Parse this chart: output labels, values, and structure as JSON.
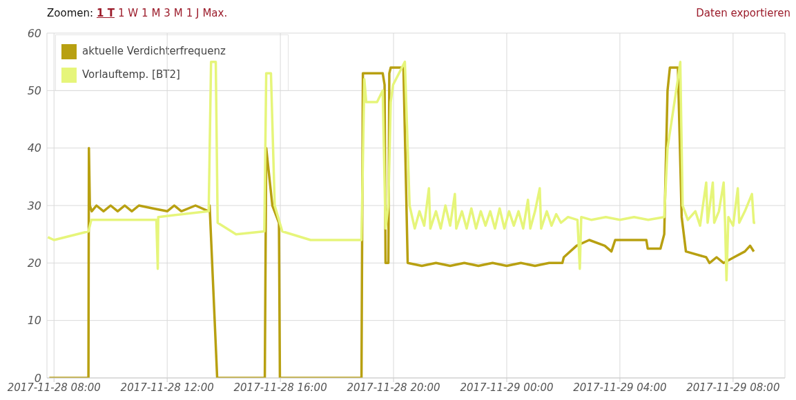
{
  "chart_data": {
    "type": "line",
    "annotations": [
      "Zoomen:",
      "1 T",
      "1 W",
      "1 M",
      "3 M",
      "1 J",
      "Max.",
      "Daten exportieren"
    ],
    "xlim": [
      "2017-11-28T07:45",
      "2017-11-29T09:50"
    ],
    "xticks": [
      {
        "value": "2017-11-28T08:00",
        "label": "2017-11-28 08:00"
      },
      {
        "value": "2017-11-28T12:00",
        "label": "2017-11-28 12:00"
      },
      {
        "value": "2017-11-28T16:00",
        "label": "2017-11-28 16:00"
      },
      {
        "value": "2017-11-28T20:00",
        "label": "2017-11-28 20:00"
      },
      {
        "value": "2017-11-29T00:00",
        "label": "2017-11-29 00:00"
      },
      {
        "value": "2017-11-29T04:00",
        "label": "2017-11-29 04:00"
      },
      {
        "value": "2017-11-29T08:00",
        "label": "2017-11-29 08:00"
      }
    ],
    "ylim": [
      0,
      60
    ],
    "yticks": [
      0,
      10,
      20,
      30,
      40,
      50,
      60
    ],
    "grid": true,
    "legend": "top left",
    "marker": "none",
    "line_style": "solid",
    "series": [
      {
        "name": "aktuelle Verdichterfrequenz",
        "color": "#b8a011",
        "x": [
          "2017-11-28T07:50",
          "2017-11-28T09:13",
          "2017-11-28T09:14",
          "2017-11-28T09:16",
          "2017-11-28T09:20",
          "2017-11-28T09:30",
          "2017-11-28T09:45",
          "2017-11-28T10:00",
          "2017-11-28T10:15",
          "2017-11-28T10:30",
          "2017-11-28T10:45",
          "2017-11-28T11:00",
          "2017-11-28T11:30",
          "2017-11-28T12:00",
          "2017-11-28T12:15",
          "2017-11-28T12:30",
          "2017-11-28T13:00",
          "2017-11-28T13:28",
          "2017-11-28T13:30",
          "2017-11-28T13:46",
          "2017-11-28T15:27",
          "2017-11-28T15:30",
          "2017-11-28T15:43",
          "2017-11-28T15:57",
          "2017-11-28T15:59",
          "2017-11-28T18:52",
          "2017-11-28T18:55",
          "2017-11-28T19:37",
          "2017-11-28T19:41",
          "2017-11-28T19:43",
          "2017-11-28T19:49",
          "2017-11-28T19:51",
          "2017-11-28T19:54",
          "2017-11-28T20:21",
          "2017-11-28T20:30",
          "2017-11-28T21:00",
          "2017-11-28T21:30",
          "2017-11-28T22:00",
          "2017-11-28T22:30",
          "2017-11-28T23:00",
          "2017-11-28T23:30",
          "2017-11-29T00:00",
          "2017-11-29T00:30",
          "2017-11-29T01:00",
          "2017-11-29T01:30",
          "2017-11-29T01:58",
          "2017-11-29T02:01",
          "2017-11-29T02:28",
          "2017-11-29T02:55",
          "2017-11-29T03:28",
          "2017-11-29T03:42",
          "2017-11-29T03:50",
          "2017-11-29T04:56",
          "2017-11-29T04:59",
          "2017-11-29T05:26",
          "2017-11-29T05:34",
          "2017-11-29T05:41",
          "2017-11-29T05:46",
          "2017-11-29T06:03",
          "2017-11-29T06:11",
          "2017-11-29T06:20",
          "2017-11-29T07:03",
          "2017-11-29T07:10",
          "2017-11-29T07:25",
          "2017-11-29T07:40",
          "2017-11-29T08:02",
          "2017-11-29T08:25",
          "2017-11-29T08:36",
          "2017-11-29T08:44"
        ],
        "values": [
          0,
          0,
          40,
          30,
          29,
          30,
          29,
          30,
          29,
          30,
          29,
          30,
          29.5,
          29,
          30,
          29,
          30,
          29,
          30,
          0,
          0,
          40,
          30,
          27,
          0,
          0,
          53,
          53,
          51,
          20,
          20,
          53,
          54,
          54,
          20,
          19.5,
          20,
          19.5,
          20,
          19.5,
          20,
          19.5,
          20,
          19.5,
          20,
          20,
          21,
          23,
          24,
          23,
          22,
          24,
          24,
          22.5,
          22.5,
          25,
          50,
          54,
          54,
          28,
          22,
          21,
          20,
          21,
          20,
          21,
          22,
          23,
          22
        ]
      },
      {
        "name": "Vorlauftemp. [BT2]",
        "color": "#e6f57a",
        "x": [
          "2017-11-28T07:47",
          "2017-11-28T08:00",
          "2017-11-28T09:13",
          "2017-11-28T09:19",
          "2017-11-28T11:37",
          "2017-11-28T11:40",
          "2017-11-28T11:41",
          "2017-11-28T13:28",
          "2017-11-28T13:33",
          "2017-11-28T13:43",
          "2017-11-28T13:47",
          "2017-11-28T14:26",
          "2017-11-28T15:26",
          "2017-11-28T15:30",
          "2017-11-28T15:40",
          "2017-11-28T15:48",
          "2017-11-28T16:04",
          "2017-11-28T17:04",
          "2017-11-28T18:52",
          "2017-11-28T18:58",
          "2017-11-28T19:02",
          "2017-11-28T19:25",
          "2017-11-28T19:37",
          "2017-11-28T19:43",
          "2017-11-28T19:49",
          "2017-11-28T19:54",
          "2017-11-28T19:59",
          "2017-11-28T20:24",
          "2017-11-28T20:34",
          "2017-11-28T20:45",
          "2017-11-28T20:55",
          "2017-11-28T21:05",
          "2017-11-28T21:15",
          "2017-11-28T21:18",
          "2017-11-28T21:30",
          "2017-11-28T21:40",
          "2017-11-28T21:50",
          "2017-11-28T22:00",
          "2017-11-28T22:10",
          "2017-11-28T22:13",
          "2017-11-28T22:25",
          "2017-11-28T22:35",
          "2017-11-28T22:45",
          "2017-11-28T22:55",
          "2017-11-28T23:05",
          "2017-11-28T23:15",
          "2017-11-28T23:25",
          "2017-11-28T23:35",
          "2017-11-28T23:45",
          "2017-11-28T23:55",
          "2017-11-29T00:05",
          "2017-11-29T00:15",
          "2017-11-29T00:25",
          "2017-11-29T00:35",
          "2017-11-29T00:45",
          "2017-11-29T00:50",
          "2017-11-29T01:00",
          "2017-11-29T01:10",
          "2017-11-29T01:13",
          "2017-11-29T01:25",
          "2017-11-29T01:35",
          "2017-11-29T01:45",
          "2017-11-29T01:55",
          "2017-11-29T02:10",
          "2017-11-29T02:30",
          "2017-11-29T02:35",
          "2017-11-29T02:38",
          "2017-11-29T03:00",
          "2017-11-29T03:30",
          "2017-11-29T04:00",
          "2017-11-29T04:30",
          "2017-11-29T05:00",
          "2017-11-29T05:34",
          "2017-11-29T05:41",
          "2017-11-29T06:03",
          "2017-11-29T06:08",
          "2017-11-29T06:13",
          "2017-11-29T06:24",
          "2017-11-29T06:40",
          "2017-11-29T06:50",
          "2017-11-29T07:03",
          "2017-11-29T07:06",
          "2017-11-29T07:17",
          "2017-11-29T07:20",
          "2017-11-29T07:30",
          "2017-11-29T07:40",
          "2017-11-29T07:43",
          "2017-11-29T07:46",
          "2017-11-29T07:50",
          "2017-11-29T08:00",
          "2017-11-29T08:10",
          "2017-11-29T08:13",
          "2017-11-29T08:25",
          "2017-11-29T08:40",
          "2017-11-29T08:44",
          "2017-11-29T08:47"
        ],
        "values": [
          24.5,
          24,
          25.5,
          27.5,
          27.5,
          19,
          28,
          29,
          55,
          55,
          27,
          25,
          25.5,
          53,
          53,
          30,
          25.5,
          24,
          24,
          52,
          48,
          48,
          50,
          26,
          30,
          48,
          51,
          55,
          30,
          26,
          29,
          26.5,
          33,
          26,
          29,
          26,
          30,
          26.5,
          32,
          26,
          29,
          26,
          29.5,
          26,
          29,
          26.5,
          29,
          26,
          29.5,
          26,
          29,
          26.5,
          29,
          26,
          31,
          26,
          29,
          33,
          26,
          29,
          26.5,
          28.5,
          27,
          28,
          27.5,
          19,
          28,
          27.5,
          28,
          27.5,
          28,
          27.5,
          28,
          40,
          52,
          55,
          30,
          27.5,
          29,
          26.5,
          34,
          27,
          34,
          27,
          29,
          34,
          27,
          17,
          28,
          26.5,
          33,
          27,
          29,
          32,
          27,
          27
        ]
      }
    ]
  }
}
